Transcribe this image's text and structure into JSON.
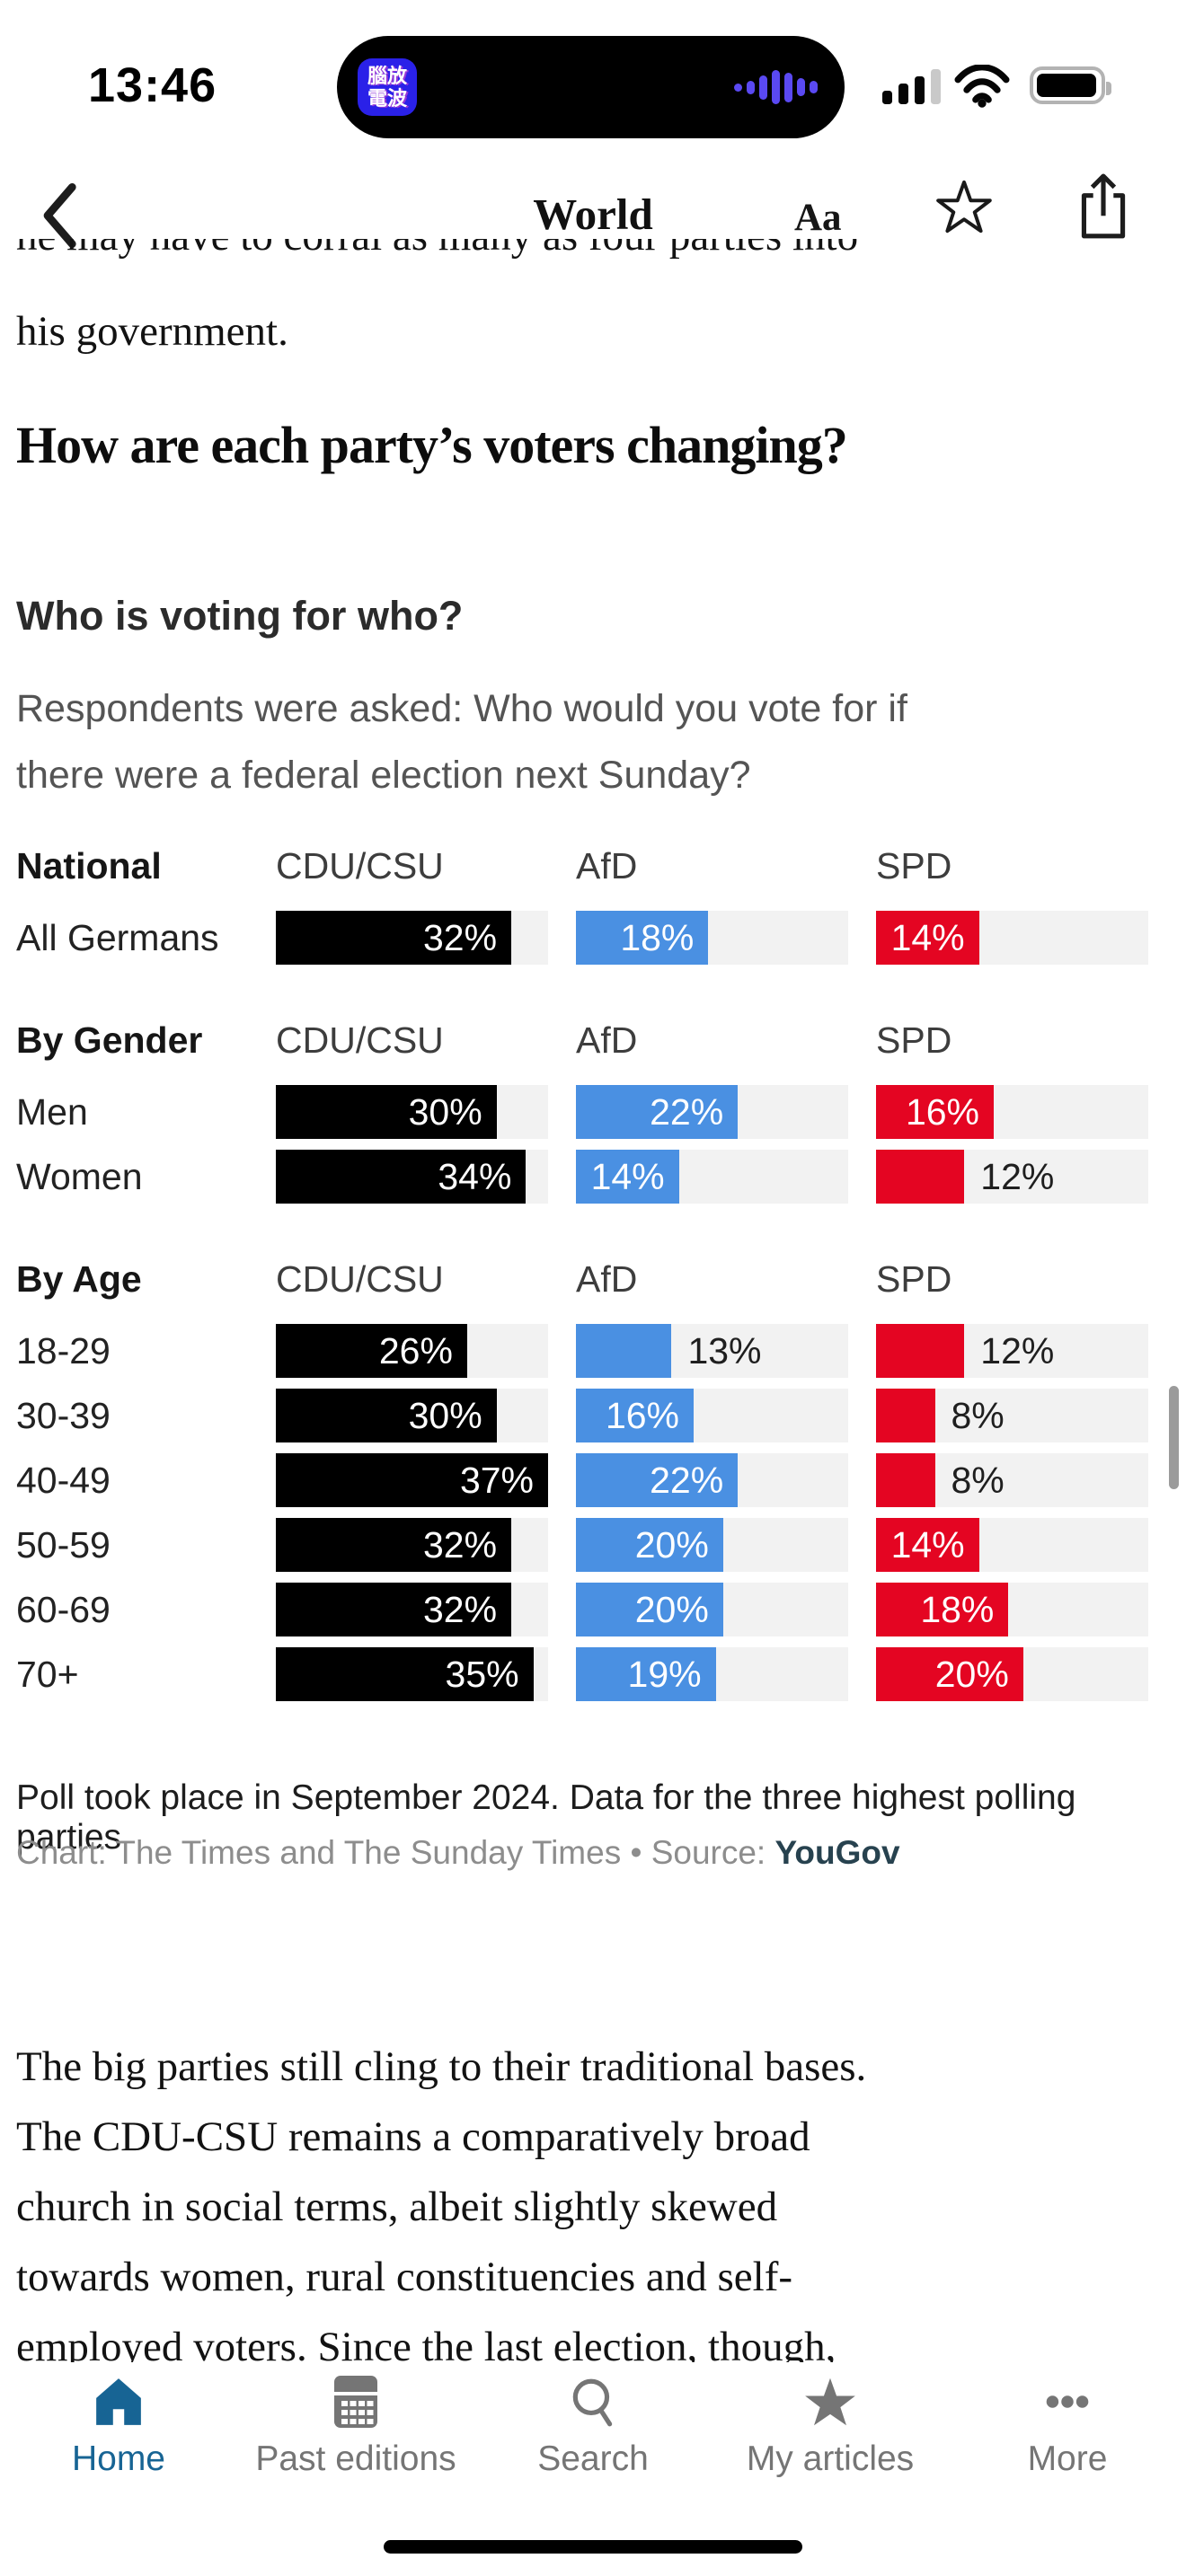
{
  "status_bar": {
    "time": "13:46",
    "island_app_line1": "腦放",
    "island_app_line2": "電波"
  },
  "nav": {
    "title": "World",
    "text_size_label": "Aa"
  },
  "article": {
    "clipped_line": "he may have to corral as many as four parties into",
    "continuation_line": "his government.",
    "heading": "How are each party’s voters changing?",
    "body_lines": [
      "The big parties still cling to their traditional bases.",
      "The CDU-CSU remains a comparatively broad",
      "church in social terms, albeit slightly skewed",
      "towards women, rural constituencies and self-",
      "employed voters. Since the last election, though,"
    ]
  },
  "chart": {
    "title": "Who is voting for who?",
    "subtitle_lines": [
      "Respondents were asked: Who would you vote for if",
      "there were a federal election next Sunday?"
    ],
    "parties": [
      "CDU/CSU",
      "AfD",
      "SPD"
    ],
    "party_colors": [
      "#000000",
      "#4a90e2",
      "#e40522"
    ],
    "track_color": "#f2f2f2",
    "footnote": "Poll took place in September 2024. Data for the three highest polling parties",
    "credit_prefix": "Chart: The Times and The Sunday Times • Source: ",
    "source_name": "YouGov"
  },
  "chart_data": {
    "type": "bar",
    "title": "Who is voting for who?",
    "subtitle": "Respondents were asked: Who would you vote for if there were a federal election next Sunday?",
    "unit": "%",
    "series": [
      "CDU/CSU",
      "AfD",
      "SPD"
    ],
    "xlim": [
      0,
      37
    ],
    "groups": [
      {
        "section": "National",
        "category": "All Germans",
        "values": [
          32,
          18,
          14
        ]
      },
      {
        "section": "By Gender",
        "category": "Men",
        "values": [
          30,
          22,
          16
        ]
      },
      {
        "section": "By Gender",
        "category": "Women",
        "values": [
          34,
          14,
          12
        ]
      },
      {
        "section": "By Age",
        "category": "18-29",
        "values": [
          26,
          13,
          12
        ]
      },
      {
        "section": "By Age",
        "category": "30-39",
        "values": [
          30,
          16,
          8
        ]
      },
      {
        "section": "By Age",
        "category": "40-49",
        "values": [
          37,
          22,
          8
        ]
      },
      {
        "section": "By Age",
        "category": "50-59",
        "values": [
          32,
          20,
          14
        ]
      },
      {
        "section": "By Age",
        "category": "60-69",
        "values": [
          32,
          20,
          18
        ]
      },
      {
        "section": "By Age",
        "category": "70+",
        "values": [
          35,
          19,
          20
        ]
      }
    ]
  },
  "tab_bar": {
    "active_color": "#176494",
    "inactive_color": "#757575",
    "items": [
      {
        "label": "Home",
        "icon": "home-icon",
        "active": true
      },
      {
        "label": "Past editions",
        "icon": "calendar-icon",
        "active": false
      },
      {
        "label": "Search",
        "icon": "search-icon",
        "active": false
      },
      {
        "label": "My articles",
        "icon": "star-icon",
        "active": false
      },
      {
        "label": "More",
        "icon": "ellipsis-icon",
        "active": false
      }
    ]
  }
}
